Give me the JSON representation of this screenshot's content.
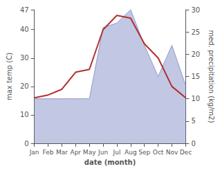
{
  "chart_data": {
    "type": "line",
    "xlabel": "date (month)",
    "ylabel": "max temp (C)",
    "y2label": "med. precipitation (kg/m2)",
    "categories": [
      "Jan",
      "Feb",
      "Mar",
      "Apr",
      "May",
      "Jun",
      "Jul",
      "Aug",
      "Sep",
      "Oct",
      "Nov",
      "Dec"
    ],
    "series": [
      {
        "type": "line",
        "color": "#b03030",
        "values": [
          16,
          17,
          19,
          25,
          26,
          40,
          45,
          44,
          35,
          30,
          20,
          16
        ]
      },
      {
        "type": "area",
        "axis": "y2",
        "color": "#9099cc",
        "values": [
          10,
          10,
          10,
          10,
          10,
          26,
          27,
          30,
          22,
          15,
          22,
          13
        ]
      }
    ],
    "ylim": [
      0,
      47
    ],
    "yticks": [
      0,
      10,
      20,
      30,
      40
    ],
    "y2lim": [
      0,
      30
    ],
    "y2ticks": [
      0,
      5,
      10,
      15,
      20,
      25,
      30
    ],
    "grid": false
  }
}
